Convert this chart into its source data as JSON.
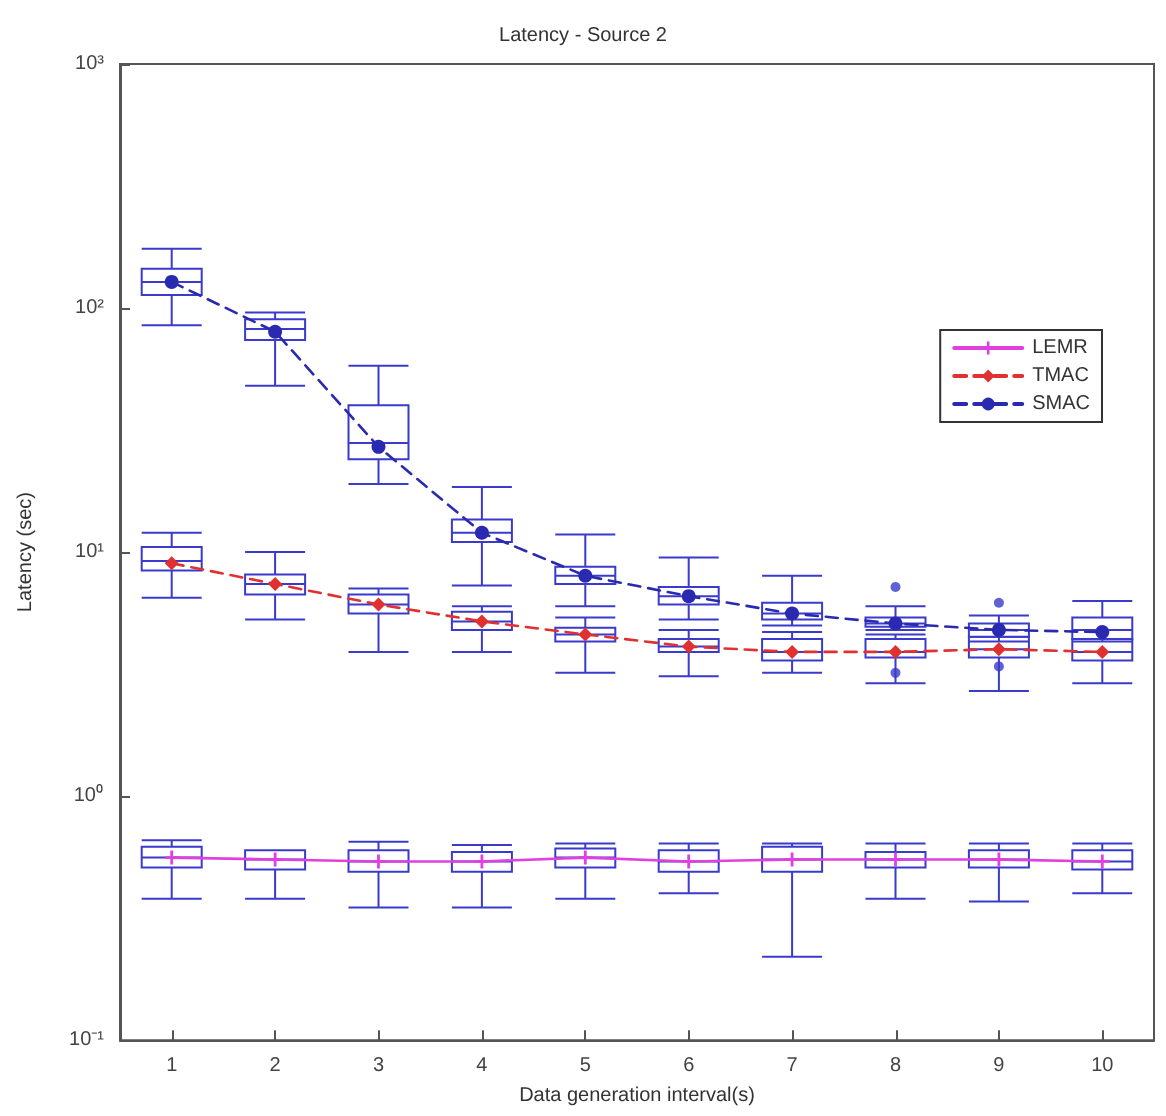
{
  "chart_data": {
    "type": "box",
    "title": "Latency - Source 2",
    "xlabel": "Data generation interval(s)",
    "ylabel": "Latency (sec)",
    "log": true,
    "legend": "right",
    "ylim": [
      0.1,
      1000
    ],
    "yticks": [
      {
        "value": 0.1,
        "label": "10⁻¹"
      },
      {
        "value": 1,
        "label": "10⁰"
      },
      {
        "value": 10,
        "label": "10¹"
      },
      {
        "value": 100,
        "label": "10²"
      },
      {
        "value": 1000,
        "label": "10³"
      }
    ],
    "categories": [
      "1",
      "2",
      "3",
      "4",
      "5",
      "6",
      "7",
      "8",
      "9",
      "10"
    ],
    "series": [
      {
        "color": "#3a3acc",
        "boxes": [
          {
            "low": 0.38,
            "q1": 0.51,
            "median": 0.56,
            "q3": 0.62,
            "high": 0.66
          },
          {
            "low": 0.38,
            "q1": 0.5,
            "median": 0.55,
            "q3": 0.6,
            "high": 0.6
          },
          {
            "low": 0.35,
            "q1": 0.49,
            "median": 0.54,
            "q3": 0.6,
            "high": 0.65
          },
          {
            "low": 0.35,
            "q1": 0.49,
            "median": 0.54,
            "q3": 0.59,
            "high": 0.63
          },
          {
            "low": 0.38,
            "q1": 0.51,
            "median": 0.56,
            "q3": 0.61,
            "high": 0.64
          },
          {
            "low": 0.4,
            "q1": 0.49,
            "median": 0.54,
            "q3": 0.6,
            "high": 0.64
          },
          {
            "low": 0.22,
            "q1": 0.49,
            "median": 0.55,
            "q3": 0.62,
            "high": 0.64
          },
          {
            "low": 0.38,
            "q1": 0.51,
            "median": 0.55,
            "q3": 0.59,
            "high": 0.64
          },
          {
            "low": 0.37,
            "q1": 0.51,
            "median": 0.55,
            "q3": 0.6,
            "high": 0.64
          },
          {
            "low": 0.4,
            "q1": 0.5,
            "median": 0.54,
            "q3": 0.6,
            "high": 0.64
          }
        ]
      },
      {
        "color": "#3a3acc",
        "boxes": [
          {
            "low": 6.5,
            "q1": 8.4,
            "median": 9.2,
            "q3": 10.5,
            "high": 12
          },
          {
            "low": 5.3,
            "q1": 6.7,
            "median": 7.4,
            "q3": 8.1,
            "high": 10
          },
          {
            "low": 3.9,
            "q1": 5.6,
            "median": 6.1,
            "q3": 6.7,
            "high": 7.1
          },
          {
            "low": 3.9,
            "q1": 4.8,
            "median": 5.2,
            "q3": 5.7,
            "high": 6
          },
          {
            "low": 3.2,
            "q1": 4.3,
            "median": 4.6,
            "q3": 4.9,
            "high": 5.4
          },
          {
            "low": 3.1,
            "q1": 3.9,
            "median": 4.1,
            "q3": 4.4,
            "high": 4.8
          },
          {
            "low": 3.2,
            "q1": 3.6,
            "median": 3.9,
            "q3": 4.4,
            "high": 4.7
          },
          {
            "low": 2.9,
            "q1": 3.7,
            "median": 3.9,
            "q3": 4.4,
            "high": 4.6,
            "outliers": [
              3.2
            ]
          },
          {
            "low": 2.7,
            "q1": 3.7,
            "median": 4.0,
            "q3": 4.5,
            "high": 4.7,
            "outliers": [
              3.4
            ]
          },
          {
            "low": 2.9,
            "q1": 3.6,
            "median": 3.9,
            "q3": 4.4,
            "high": 4.8
          }
        ]
      },
      {
        "color": "#3a3acc",
        "boxes": [
          {
            "low": 85,
            "q1": 113,
            "median": 128,
            "q3": 145,
            "high": 175
          },
          {
            "low": 48,
            "q1": 74,
            "median": 82,
            "q3": 90,
            "high": 96
          },
          {
            "low": 19,
            "q1": 24,
            "median": 28,
            "q3": 40,
            "high": 58
          },
          {
            "low": 7.3,
            "q1": 11,
            "median": 12,
            "q3": 13.6,
            "high": 18.5
          },
          {
            "low": 6,
            "q1": 7.4,
            "median": 8,
            "q3": 8.7,
            "high": 11.8
          },
          {
            "low": 5.3,
            "q1": 6.1,
            "median": 6.6,
            "q3": 7.2,
            "high": 9.5
          },
          {
            "low": 5,
            "q1": 5.3,
            "median": 5.6,
            "q3": 6.2,
            "high": 8
          },
          {
            "low": 4.8,
            "q1": 4.95,
            "median": 5.1,
            "q3": 5.4,
            "high": 6,
            "outliers": [
              7.2
            ]
          },
          {
            "low": 4.3,
            "q1": 4.5,
            "median": 4.8,
            "q3": 5.1,
            "high": 5.5,
            "outliers": [
              6.2
            ]
          },
          {
            "low": 4.3,
            "q1": 4.4,
            "median": 4.8,
            "q3": 5.4,
            "high": 6.3
          }
        ]
      },
      {
        "type": "line",
        "name": "LEMR",
        "color": "#e040e0",
        "line_style": "solid",
        "marker": "cross",
        "values": [
          0.56,
          0.55,
          0.54,
          0.54,
          0.56,
          0.54,
          0.55,
          0.55,
          0.55,
          0.54
        ]
      },
      {
        "type": "line",
        "name": "TMAC",
        "color": "#e03030",
        "line_style": "dashed",
        "marker": "diamond",
        "values": [
          9.0,
          7.4,
          6.1,
          5.2,
          4.6,
          4.1,
          3.9,
          3.9,
          4.0,
          3.9
        ]
      },
      {
        "type": "line",
        "name": "SMAC",
        "color": "#2a2ab0",
        "line_style": "dashed",
        "marker": "circle",
        "values": [
          128,
          80,
          27,
          12,
          8,
          6.6,
          5.6,
          5.1,
          4.8,
          4.7
        ]
      }
    ]
  }
}
